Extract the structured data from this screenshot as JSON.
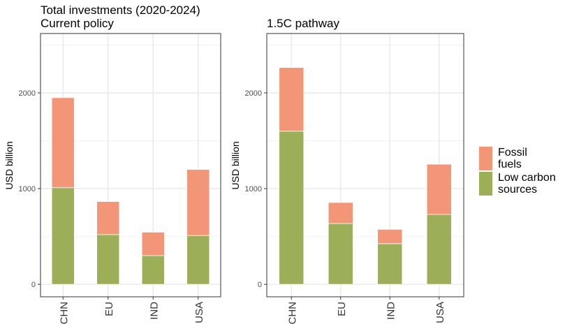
{
  "chart_data": [
    {
      "type": "bar",
      "stacked": true,
      "title": "Total investments (2020-2024)",
      "subtitle": "Current policy",
      "xlabel": "",
      "ylabel": "USD billion",
      "ylim": [
        -130,
        2620
      ],
      "yticks": [
        0,
        1000,
        2000
      ],
      "grid": true,
      "categories": [
        "CHN",
        "EU",
        "IND",
        "USA"
      ],
      "series": [
        {
          "name": "Low carbon sources",
          "color": "#9caf58",
          "values": [
            1010,
            520,
            300,
            510
          ]
        },
        {
          "name": "Fossil fuels",
          "color": "#f39678",
          "values": [
            940,
            345,
            245,
            690
          ]
        }
      ]
    },
    {
      "type": "bar",
      "stacked": true,
      "title": "1.5C pathway",
      "subtitle": "",
      "xlabel": "",
      "ylabel": "USD billion",
      "ylim": [
        -130,
        2620
      ],
      "yticks": [
        0,
        1000,
        2000
      ],
      "grid": true,
      "categories": [
        "CHN",
        "EU",
        "IND",
        "USA"
      ],
      "series": [
        {
          "name": "Low carbon sources",
          "color": "#9caf58",
          "values": [
            1600,
            635,
            425,
            730
          ]
        },
        {
          "name": "Fossil fuels",
          "color": "#f39678",
          "values": [
            665,
            220,
            150,
            525
          ]
        }
      ]
    }
  ],
  "legend": {
    "position": "right",
    "items": [
      {
        "label": "Fossil\nfuels",
        "color": "#f39678"
      },
      {
        "label": "Low carbon\nsources",
        "color": "#9caf58"
      }
    ]
  }
}
